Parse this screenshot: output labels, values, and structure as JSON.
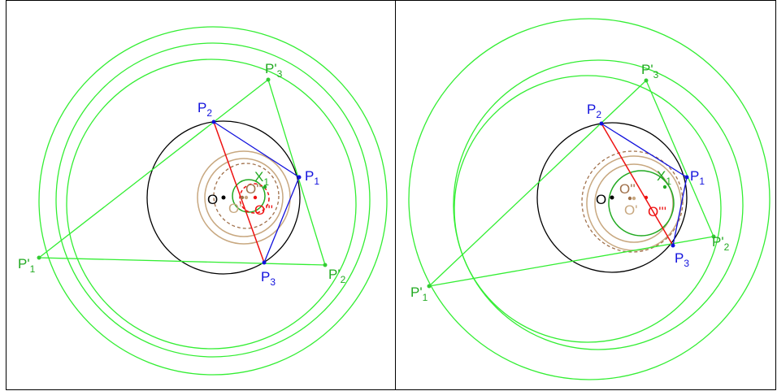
{
  "left": {
    "labels": [
      {
        "text": "P'",
        "sub": "3"
      },
      {
        "text": "P",
        "sub": "2"
      },
      {
        "text": "P",
        "sub": "1"
      },
      {
        "text": "X",
        "sub": "1"
      },
      {
        "text": "O"
      },
      {
        "text": "O''"
      },
      {
        "text": "O'"
      },
      {
        "text": "O'''"
      },
      {
        "text": "P'",
        "sub": "1"
      },
      {
        "text": "P'",
        "sub": "2"
      },
      {
        "text": "P",
        "sub": "3"
      }
    ]
  },
  "right": {
    "labels": [
      {
        "text": "P'",
        "sub": "3"
      },
      {
        "text": "P",
        "sub": "2"
      },
      {
        "text": "P",
        "sub": "1"
      },
      {
        "text": "X",
        "sub": "1"
      },
      {
        "text": "O"
      },
      {
        "text": "O''"
      },
      {
        "text": "O'"
      },
      {
        "text": "O'''"
      },
      {
        "text": "P'",
        "sub": "1"
      },
      {
        "text": "P'",
        "sub": "2"
      },
      {
        "text": "P",
        "sub": "3"
      }
    ]
  }
}
